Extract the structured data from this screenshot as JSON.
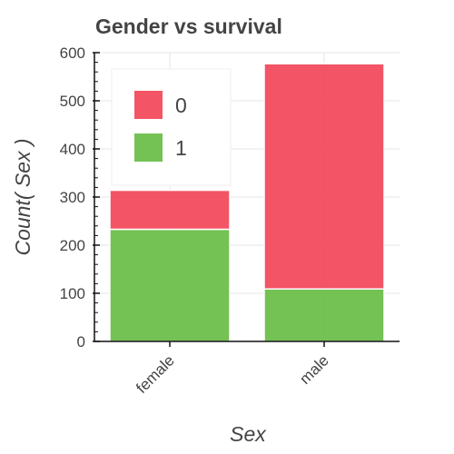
{
  "chart_data": {
    "type": "bar",
    "stacked": true,
    "title": "Gender vs survival",
    "xlabel": "Sex",
    "ylabel": "Count( Sex )",
    "categories": [
      "female",
      "male"
    ],
    "ylim": [
      0,
      600
    ],
    "yticks": [
      "0",
      "100",
      "200",
      "300",
      "400",
      "500",
      "600"
    ],
    "series": [
      {
        "name": "1",
        "color": "#6cbf4a",
        "values": [
          233,
          109
        ]
      },
      {
        "name": "0",
        "color": "#f24b5e",
        "values": [
          81,
          468
        ]
      }
    ],
    "legend": {
      "position": "top-left",
      "entries": [
        {
          "label": "0",
          "color": "#f24b5e"
        },
        {
          "label": "1",
          "color": "#6cbf4a"
        }
      ]
    },
    "grid": true
  }
}
